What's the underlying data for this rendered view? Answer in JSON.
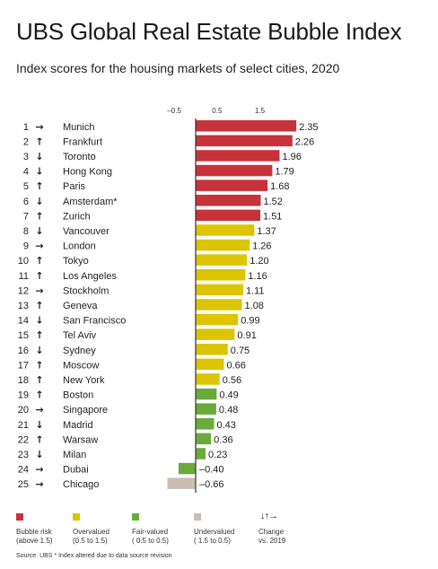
{
  "header": {
    "title": "UBS Global Real Estate Bubble Index",
    "subtitle": "Index scores for the housing markets of select cities, 2020"
  },
  "colors": {
    "bubble_risk": "#c8323a",
    "overvalued": "#dcc400",
    "fair_valued": "#6aaa3a",
    "undervalued": "#c8bfb2"
  },
  "chart_data": {
    "type": "bar",
    "orientation": "horizontal",
    "x_ticks": [
      "–0.5",
      "0.5",
      "1.5"
    ],
    "xlim": [
      -0.9,
      2.6
    ],
    "ranks": [
      "1",
      "2",
      "3",
      "4",
      "5",
      "6",
      "7",
      "8",
      "9",
      "10",
      "11",
      "12",
      "13",
      "14",
      "15",
      "16",
      "17",
      "18",
      "19",
      "20",
      "21",
      "22",
      "23",
      "24",
      "25"
    ],
    "change_icons": [
      "arrow-right",
      "arrow-up",
      "arrow-down",
      "arrow-down",
      "arrow-up",
      "arrow-down",
      "arrow-up",
      "arrow-down",
      "arrow-right",
      "arrow-up",
      "arrow-up",
      "arrow-right",
      "arrow-up",
      "arrow-down",
      "arrow-up",
      "arrow-down",
      "arrow-up",
      "arrow-up",
      "arrow-up",
      "arrow-right",
      "arrow-down",
      "arrow-up",
      "arrow-down",
      "arrow-right",
      "arrow-right"
    ],
    "categories": [
      "Munich",
      "Frankfurt",
      "Toronto",
      "Hong Kong",
      "Paris",
      "Amsterdam*",
      "Zurich",
      "Vancouver",
      "London",
      "Tokyo",
      "Los Angeles",
      "Stockholm",
      "Geneva",
      "San Francisco",
      "Tel Aviv",
      "Sydney",
      "Moscow",
      "New York",
      "Boston",
      "Singapore",
      "Madrid",
      "Warsaw",
      "Milan",
      "Dubai",
      "Chicago"
    ],
    "values": [
      2.35,
      2.26,
      1.96,
      1.79,
      1.68,
      1.52,
      1.51,
      1.37,
      1.26,
      1.2,
      1.16,
      1.11,
      1.08,
      0.99,
      0.91,
      0.75,
      0.66,
      0.56,
      0.49,
      0.48,
      0.43,
      0.36,
      0.23,
      -0.4,
      -0.66
    ],
    "value_labels": [
      "2.35",
      "2.26",
      "1.96",
      "1.79",
      "1.68",
      "1.52",
      "1.51",
      "1.37",
      "1.26",
      "1.20",
      "1.16",
      "1.11",
      "1.08",
      "0.99",
      "0.91",
      "0.75",
      "0.66",
      "0.56",
      "0.49",
      "0.48",
      "0.43",
      "0.36",
      "0.23",
      "–0.40",
      "–0.66"
    ],
    "legend": [
      {
        "line1": "Bubble risk",
        "line2": "(above 1.5)",
        "color": "#c8323a"
      },
      {
        "line1": "Overvalued",
        "line2": "(0.5 to 1.5)",
        "color": "#dcc400"
      },
      {
        "line1": "Fair-valued",
        "line2": "( 0.5 to 0.5)",
        "color": "#6aaa3a"
      },
      {
        "line1": "Undervalued",
        "line2": "( 1.5 to  0.5)",
        "color": "#c8bfb2"
      }
    ],
    "change_legend": {
      "icons": "↓↑→",
      "line1": "Change",
      "line2": "vs. 2019"
    }
  },
  "footer": {
    "source": "Source: UBS  * Index altered due to data source revision"
  }
}
